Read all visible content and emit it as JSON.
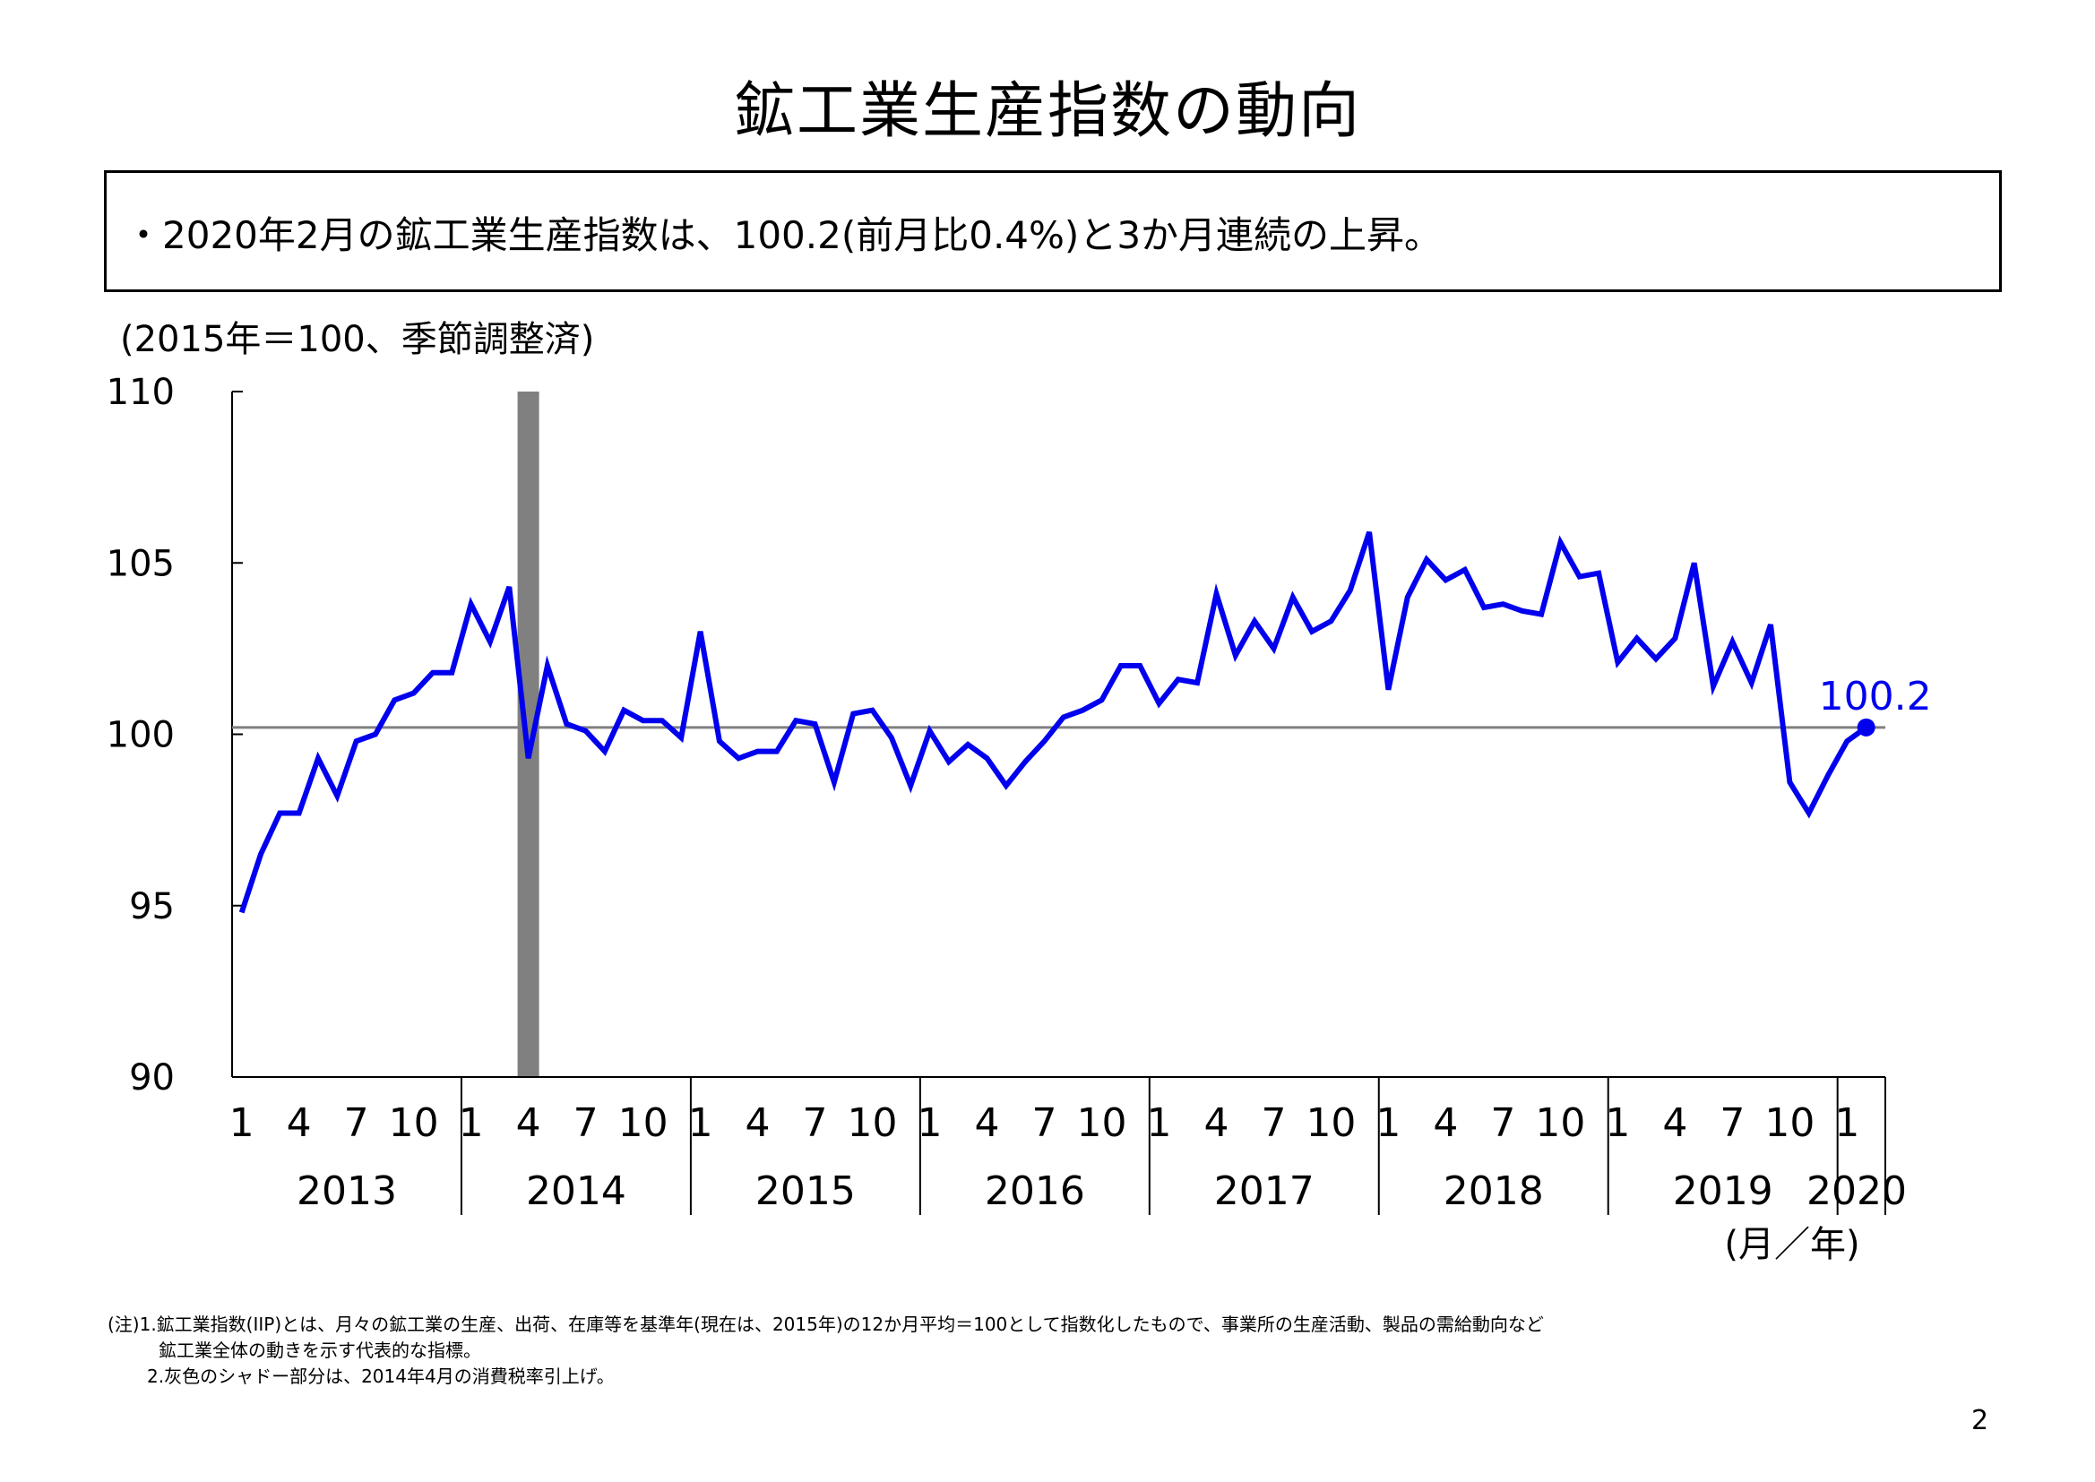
{
  "title": "鉱工業生産指数の動向",
  "summary": "・2020年2月の鉱工業生産指数は、100.2(前月比0.4%)と3か月連続の上昇。",
  "unit_note": "(2015年＝100、季節調整済)",
  "x_unit_label": "(月／年)",
  "notes": [
    "(注)1.鉱工業指数(IIP)とは、月々の鉱工業の生産、出荷、在庫等を基準年(現在は、2015年)の12か月平均＝100として指数化したもので、事業所の生産活動、製品の需給動向など",
    "鉱工業全体の動きを示す代表的な指標。",
    "2.灰色のシャドー部分は、2014年4月の消費税率引上げ。"
  ],
  "page_number": "2",
  "colors": {
    "line": "#0000ee",
    "reference_line": "#808080",
    "shade": "#808080",
    "axis": "#000000"
  },
  "chart_data": {
    "type": "line",
    "title": "",
    "ylim": [
      90,
      110
    ],
    "y_ticks": [
      90,
      95,
      100,
      105,
      110
    ],
    "x_month_ticks": [
      1,
      4,
      7,
      10
    ],
    "years": [
      "2013",
      "2014",
      "2015",
      "2016",
      "2017",
      "2018",
      "2019",
      "2020"
    ],
    "start": "2013-01",
    "end": "2020-02",
    "reference_line": 100.2,
    "shaded_period": "2014-04",
    "last_value_label": "100.2",
    "series": [
      {
        "values": [
          94.8,
          96.5,
          97.7,
          97.7,
          99.3,
          98.2,
          99.8,
          100.0,
          101.0,
          101.2,
          101.8,
          101.8,
          103.8,
          102.7,
          104.3,
          99.3,
          102.0,
          100.3,
          100.1,
          99.5,
          100.7,
          100.4,
          100.4,
          99.9,
          103.0,
          99.8,
          99.3,
          99.5,
          99.5,
          100.4,
          100.3,
          98.6,
          100.6,
          100.7,
          99.9,
          98.5,
          100.1,
          99.2,
          99.7,
          99.3,
          98.5,
          99.2,
          99.8,
          100.5,
          100.7,
          101.0,
          102.0,
          102.0,
          100.9,
          101.6,
          101.5,
          104.1,
          102.3,
          103.3,
          102.5,
          104.0,
          103.0,
          103.3,
          104.2,
          105.9,
          101.3,
          104.0,
          105.1,
          104.5,
          104.8,
          103.7,
          103.8,
          103.6,
          103.5,
          105.6,
          104.6,
          104.7,
          102.1,
          102.8,
          102.2,
          102.8,
          105.0,
          101.4,
          102.7,
          101.5,
          103.2,
          98.6,
          97.7,
          98.8,
          99.8,
          100.2
        ]
      }
    ]
  }
}
